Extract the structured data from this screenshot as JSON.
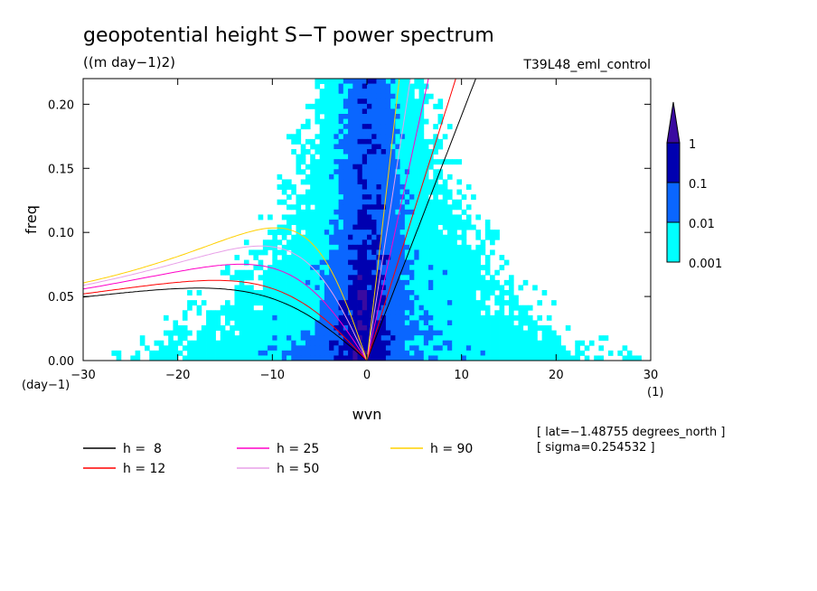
{
  "chart_data": {
    "type": "heatmap",
    "title": "geopotential height S−T power spectrum",
    "units": "((m day−1)2)",
    "experiment": "T39L48_eml_control",
    "xlabel": "wvn",
    "x_unit": "(1)",
    "ylabel": "freq",
    "y_unit": "(day−1)",
    "xlim": [
      -30,
      30
    ],
    "ylim": [
      0,
      0.22
    ],
    "x_ticks": [
      -30,
      -20,
      -10,
      0,
      10,
      20,
      30
    ],
    "x_tick_labels": [
      "−30",
      "−20",
      "−10",
      "0",
      "10",
      "20",
      "30"
    ],
    "y_ticks": [
      0,
      0.05,
      0.1,
      0.15,
      0.2
    ],
    "y_tick_labels": [
      "0.00",
      "0.05",
      "0.10",
      "0.15",
      "0.20"
    ],
    "colorbar": {
      "levels": [
        "0.001",
        "0.01",
        "0.1",
        "1"
      ],
      "colors": [
        "#00ffff",
        "#0a66ff",
        "#0000b0",
        "#3a0aa0"
      ],
      "extend": "max"
    },
    "info_lines": [
      "[ lat=−1.48755 degrees_north ]",
      "[ sigma=0.254532 ]"
    ],
    "dispersion_curves": [
      {
        "label": "h =  8",
        "h": 8,
        "color": "#000000"
      },
      {
        "label": "h = 12",
        "h": 12,
        "color": "#ff0000"
      },
      {
        "label": "h = 25",
        "h": 25,
        "color": "#ff00c8"
      },
      {
        "label": "h = 50",
        "h": 50,
        "color": "#e8a0e8"
      },
      {
        "label": "h = 90",
        "h": 90,
        "color": "#ffd000"
      }
    ]
  }
}
